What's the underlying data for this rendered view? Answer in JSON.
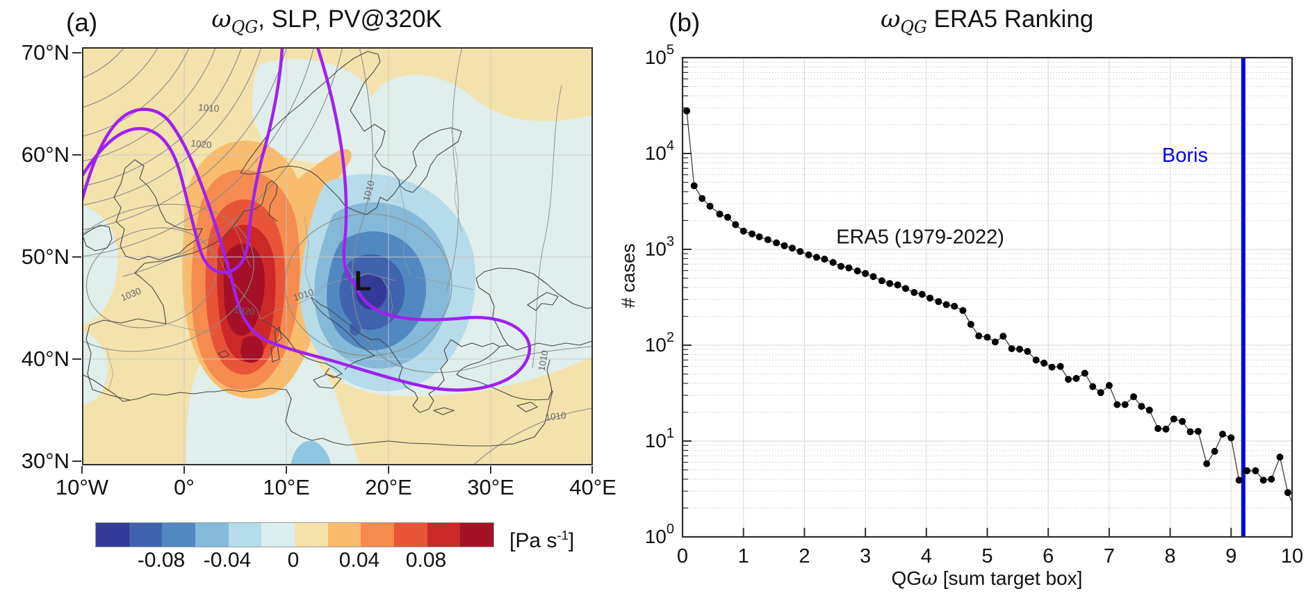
{
  "figure": {
    "panel_a": {
      "label": "(a)",
      "title_omega": "ω",
      "title_sub": "QG",
      "title_rest": ", SLP, PV@320K",
      "x_ticks": [
        "10°W",
        "0°",
        "10°E",
        "20°E",
        "30°E",
        "40°E"
      ],
      "y_ticks": [
        "70°N",
        "60°N",
        "50°N",
        "40°N",
        "30°N"
      ],
      "low_marker": "L",
      "slp_labels": [
        {
          "text": "1010"
        },
        {
          "text": "1020"
        },
        {
          "text": "1030"
        },
        {
          "text": "1020"
        },
        {
          "text": "1010"
        },
        {
          "text": "1010"
        },
        {
          "text": "1010"
        },
        {
          "text": "1010"
        }
      ],
      "colorbar": {
        "tick_labels": [
          "-0.08",
          "-0.04",
          "0",
          "0.04",
          "0.08"
        ],
        "unit_prefix": "[Pa s",
        "unit_exponent": "-1",
        "unit_suffix": "]"
      }
    },
    "panel_b": {
      "label": "(b)",
      "title_omega": "ω",
      "title_sub": "QG",
      "title_rest": " ERA5 Ranking",
      "ylabel": "# cases",
      "xlabel_pre": "QG",
      "xlabel_omega": "ω",
      "xlabel_rest": " [sum target box]"
    }
  },
  "chart_data": [
    {
      "type": "line",
      "panel": "b",
      "title": "omega_QG ERA5 Ranking",
      "xlabel": "QGomega [sum target box]",
      "ylabel": "# cases",
      "yscale": "log",
      "xlim": [
        0,
        10
      ],
      "ylim_log10": [
        0,
        5
      ],
      "grid": true,
      "x_ticks": [
        0,
        1,
        2,
        3,
        4,
        5,
        6,
        7,
        8,
        9,
        10
      ],
      "y_ticks_log10": [
        0,
        1,
        2,
        3,
        4,
        5
      ],
      "marker": "filled-circle",
      "marker_color": "#000000",
      "line_color": "#3c3c3c",
      "annotation_x": 3.9,
      "annotation_y": 1150,
      "series": [
        {
          "name": "ERA5 (1979-2022)",
          "x": [
            0.07,
            0.19,
            0.32,
            0.45,
            0.61,
            0.74,
            0.87,
            1.0,
            1.14,
            1.26,
            1.4,
            1.54,
            1.67,
            1.8,
            1.93,
            2.07,
            2.2,
            2.33,
            2.47,
            2.6,
            2.73,
            2.87,
            3.0,
            3.13,
            3.27,
            3.4,
            3.53,
            3.66,
            3.8,
            3.93,
            4.06,
            4.2,
            4.33,
            4.46,
            4.6,
            4.73,
            4.86,
            5.0,
            5.13,
            5.26,
            5.4,
            5.53,
            5.66,
            5.8,
            5.93,
            6.06,
            6.2,
            6.33,
            6.46,
            6.6,
            6.73,
            6.86,
            7.0,
            7.13,
            7.26,
            7.4,
            7.53,
            7.66,
            7.8,
            7.93,
            8.06,
            8.2,
            8.33,
            8.46,
            8.6,
            8.73,
            8.86,
            9.0,
            9.13,
            9.26,
            9.4,
            9.53,
            9.66,
            9.8,
            9.93
          ],
          "y": [
            27800,
            4600,
            3400,
            2820,
            2330,
            2160,
            1810,
            1550,
            1450,
            1350,
            1260,
            1170,
            1090,
            1030,
            950,
            875,
            825,
            790,
            730,
            665,
            640,
            595,
            560,
            520,
            470,
            440,
            425,
            390,
            355,
            340,
            310,
            285,
            265,
            255,
            230,
            165,
            125,
            121,
            108,
            124,
            92,
            91,
            86,
            70,
            65,
            59,
            60,
            44,
            45,
            51,
            37,
            32,
            38,
            24,
            24,
            29,
            23,
            21,
            13.5,
            13.3,
            17,
            16,
            12.5,
            12.6,
            5.8,
            7.8,
            11.8,
            10.8,
            3.9,
            4.9,
            4.9,
            3.9,
            4.0,
            6.8,
            2.9
          ]
        }
      ],
      "vline": {
        "x": 9.2,
        "color": "#0000ee",
        "label": "Boris",
        "label_x": 8.62,
        "label_y": 8200
      }
    },
    {
      "type": "heatmap",
      "panel": "a",
      "variable": "omega_QG filled contours with SLP isobars and PV@320K contour",
      "unit": "Pa s-1",
      "extent_lon": [
        -10,
        40
      ],
      "extent_lat": [
        30,
        70
      ],
      "level_boundaries": [
        -0.12,
        -0.1,
        -0.08,
        -0.06,
        -0.04,
        -0.02,
        0,
        0.02,
        0.04,
        0.06,
        0.08,
        0.1,
        0.12
      ],
      "palette": [
        "#333a97",
        "#3f63ad",
        "#5188c0",
        "#85b9d9",
        "#b5dce8",
        "#ddeef0",
        "#f5e3a9",
        "#f9bc6d",
        "#f58b4e",
        "#e85438",
        "#cc2827",
        "#a51126"
      ],
      "slp_contour_values": [
        1010,
        1020,
        1030
      ],
      "bg_positive": "#f3e2ab",
      "bg_negative": "#e0eeec",
      "bump_color": "#8fc7e2",
      "warm_levels": [
        "#f9bc6d",
        "#f58b4e",
        "#e85438",
        "#cc2827",
        "#a51126"
      ],
      "cold_levels": [
        "#b5dce8",
        "#85b9d9",
        "#5188c0",
        "#3f63ad",
        "#333a97"
      ],
      "pv_color": "#a020f0",
      "coast_color": "#454545",
      "slp_line_color": "#8a8a8a"
    }
  ]
}
